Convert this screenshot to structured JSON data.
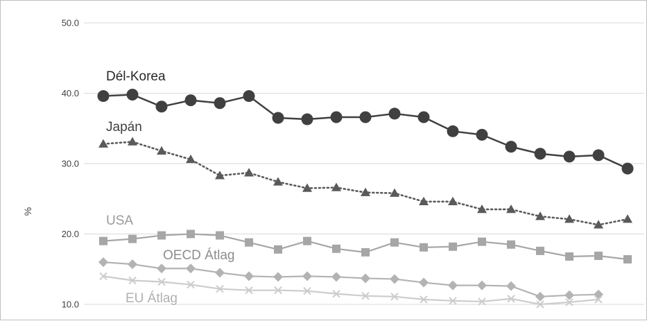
{
  "chart_data": {
    "type": "line",
    "title": "",
    "xlabel": "",
    "ylabel": "%",
    "ylim": [
      10,
      50
    ],
    "y_ticks": [
      "10.0",
      "20.0",
      "30.0",
      "40.0",
      "50.0"
    ],
    "grid": true,
    "legend": "inline labels",
    "x": [
      1,
      2,
      3,
      4,
      5,
      6,
      7,
      8,
      9,
      10,
      11,
      12,
      13,
      14,
      15,
      16,
      17,
      18,
      19
    ],
    "series": [
      {
        "name": "Dél-Korea",
        "marker": "circle",
        "line": "solid",
        "color": "#404040",
        "values": [
          39.6,
          39.8,
          38.1,
          39.0,
          38.6,
          39.6,
          36.5,
          36.3,
          36.6,
          36.6,
          37.1,
          36.6,
          34.6,
          34.1,
          32.4,
          31.4,
          31.0,
          31.2,
          29.3
        ]
      },
      {
        "name": "Japán",
        "marker": "triangle",
        "line": "dotted",
        "color": "#5a5a5a",
        "values": [
          32.8,
          33.1,
          31.8,
          30.6,
          28.3,
          28.7,
          27.4,
          26.5,
          26.6,
          25.9,
          25.8,
          24.6,
          24.6,
          23.5,
          23.5,
          22.5,
          22.1,
          21.3,
          22.1
        ]
      },
      {
        "name": "USA",
        "marker": "square",
        "line": "solid",
        "color": "#a6a6a6",
        "values": [
          19.0,
          19.3,
          19.8,
          20.0,
          19.8,
          18.8,
          17.8,
          19.0,
          17.9,
          17.4,
          18.8,
          18.1,
          18.2,
          18.9,
          18.5,
          17.6,
          16.8,
          16.9,
          16.4
        ]
      },
      {
        "name": "OECD Átlag",
        "marker": "diamond",
        "line": "solid",
        "color": "#b3b3b3",
        "values": [
          16.0,
          15.7,
          15.1,
          15.1,
          14.5,
          14.0,
          13.9,
          14.0,
          13.9,
          13.7,
          13.6,
          13.1,
          12.7,
          12.7,
          12.6,
          11.1,
          11.3,
          11.4,
          null
        ]
      },
      {
        "name": "EU Átlag",
        "marker": "x",
        "line": "solid",
        "color": "#cccccc",
        "values": [
          14.0,
          13.4,
          13.2,
          12.8,
          12.2,
          12.0,
          12.0,
          11.9,
          11.5,
          11.2,
          11.1,
          10.7,
          10.5,
          10.4,
          10.8,
          10.0,
          10.3,
          10.7,
          null
        ]
      }
    ],
    "labels": {
      "korea": "Dél-Korea",
      "japan": "Japán",
      "usa": "USA",
      "oecd": "OECD Átlag",
      "eu": "EU Átlag"
    }
  }
}
